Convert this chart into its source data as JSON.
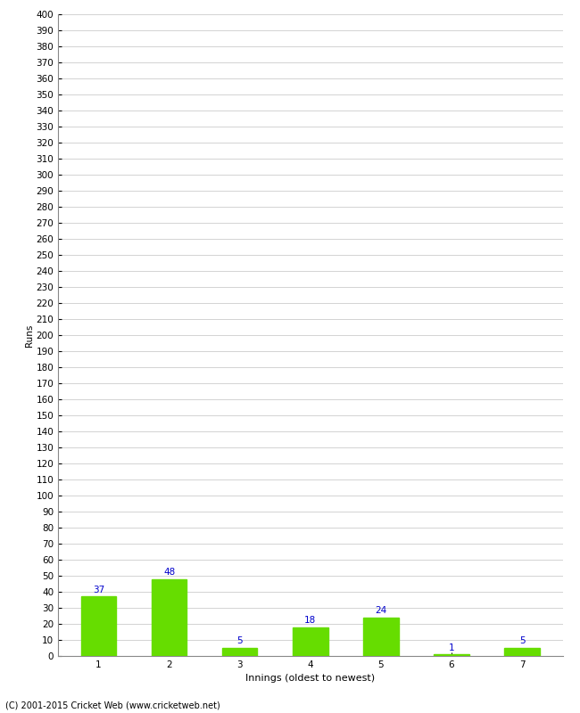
{
  "title": "",
  "categories": [
    "1",
    "2",
    "3",
    "4",
    "5",
    "6",
    "7"
  ],
  "values": [
    37,
    48,
    5,
    18,
    24,
    1,
    5
  ],
  "bar_color": "#66dd00",
  "bar_edge_color": "#66dd00",
  "label_color": "#0000cc",
  "xlabel": "Innings (oldest to newest)",
  "ylabel": "Runs",
  "ylim": [
    0,
    400
  ],
  "ytick_step": 10,
  "background_color": "#ffffff",
  "grid_color": "#cccccc",
  "footnote": "(C) 2001-2015 Cricket Web (www.cricketweb.net)",
  "label_fontsize": 7.5,
  "axis_fontsize": 7.5,
  "ylabel_fontsize": 7.5,
  "xlabel_fontsize": 8,
  "footnote_fontsize": 7
}
